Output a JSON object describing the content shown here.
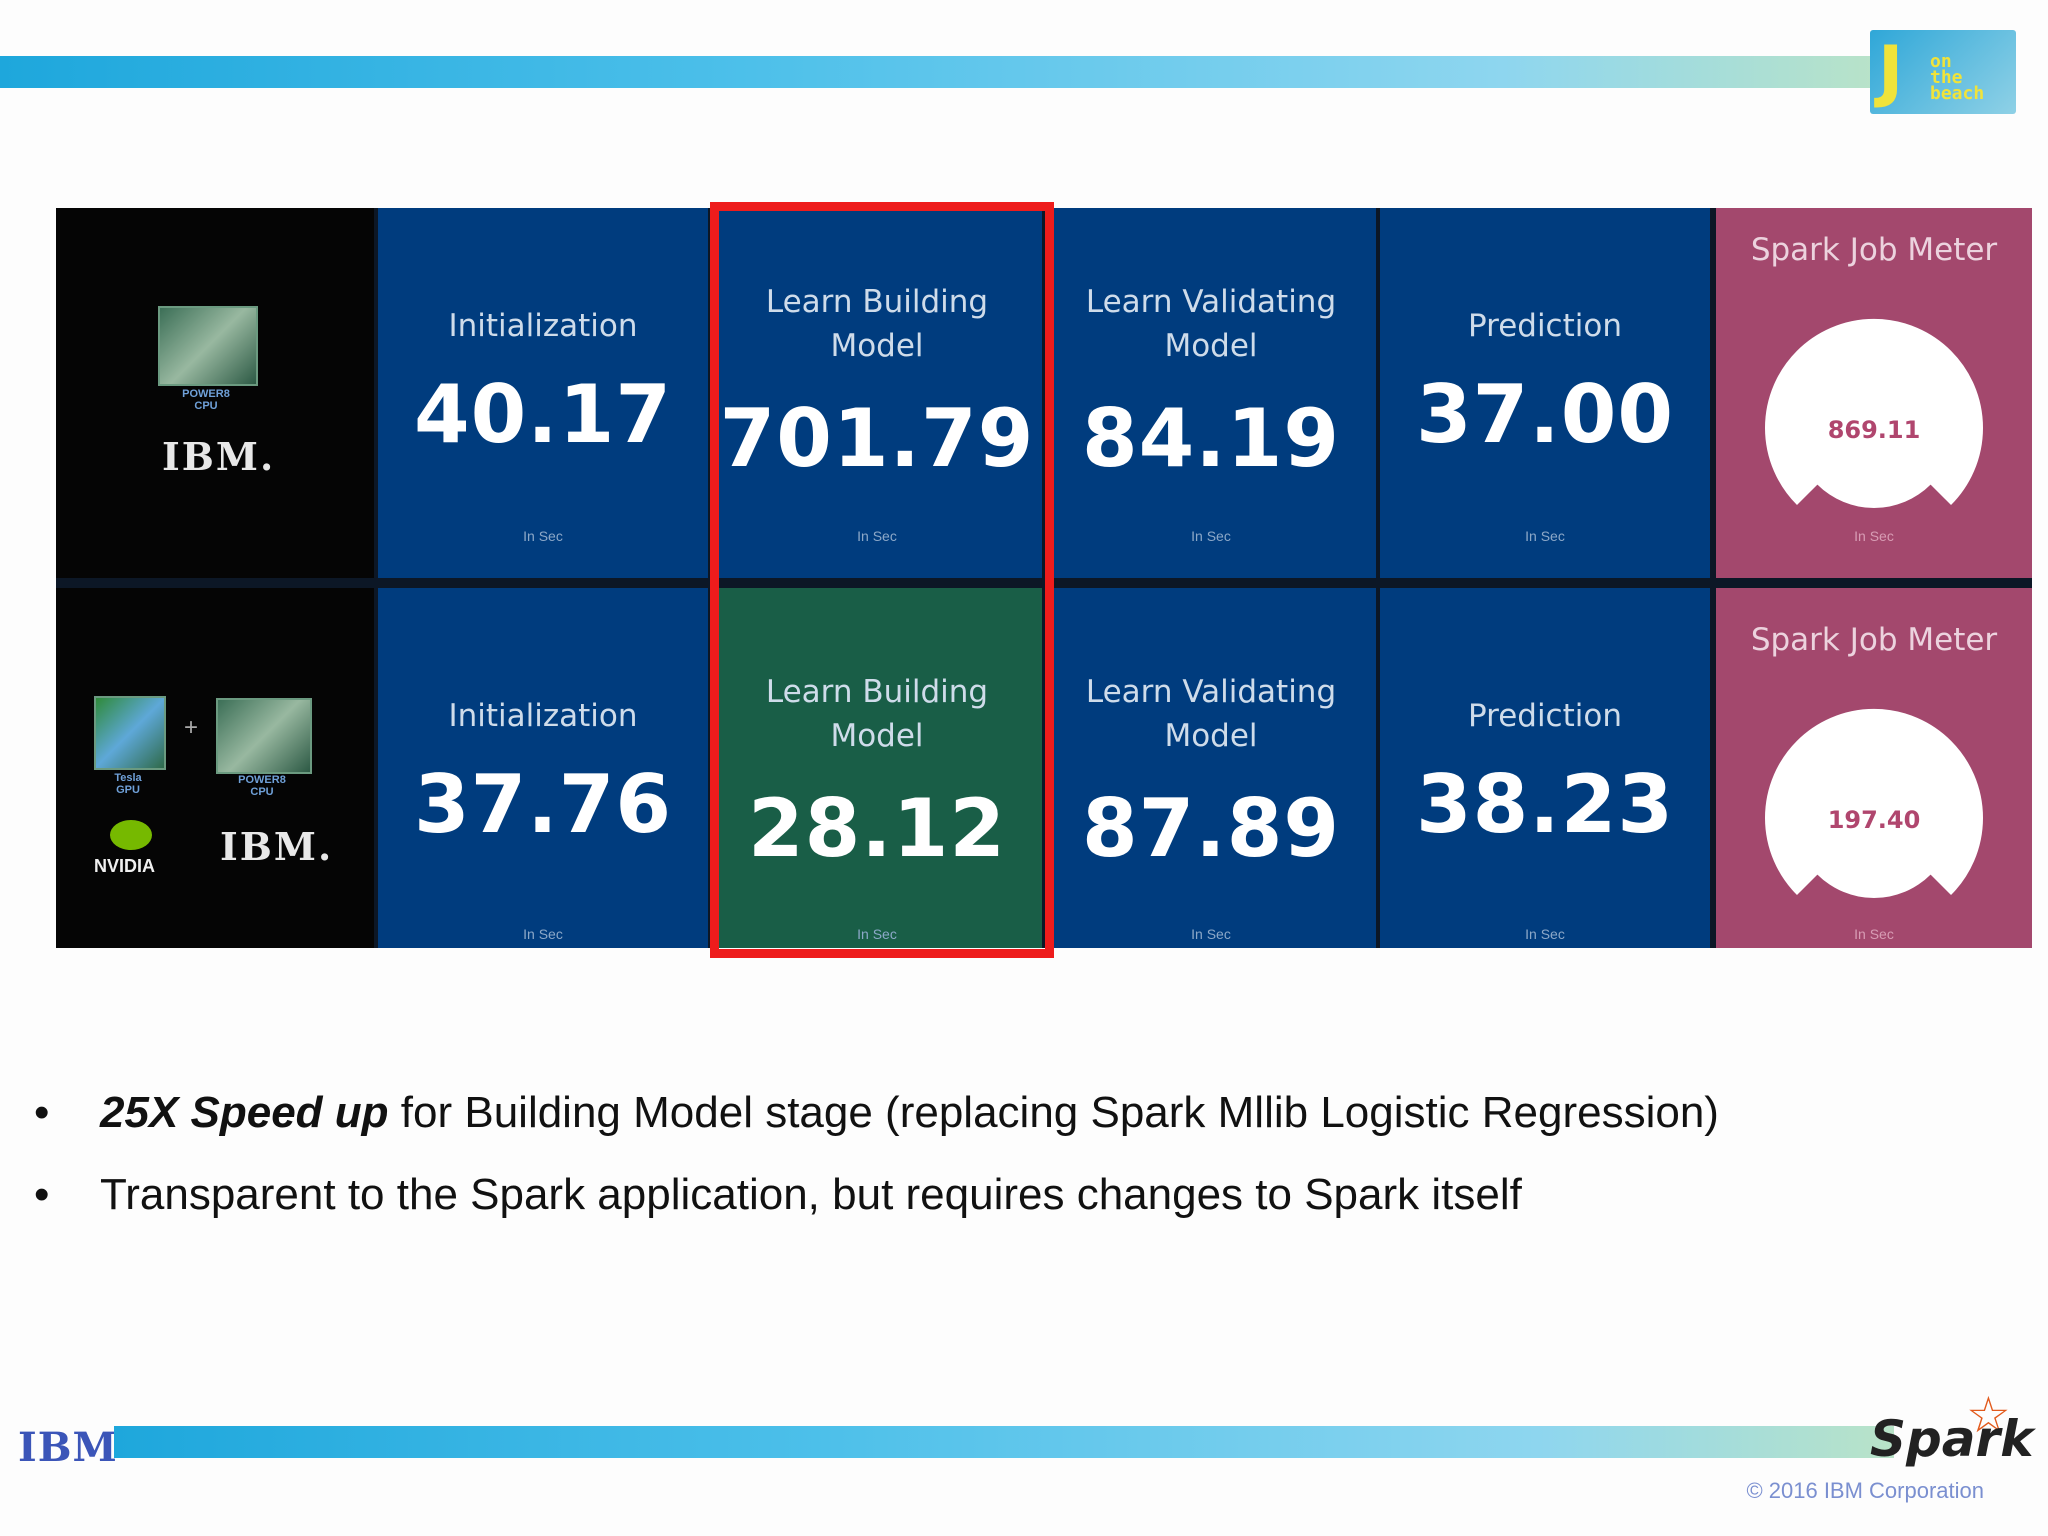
{
  "conference_logo": {
    "letter": "J",
    "text_lines": [
      "on",
      "the",
      "beach"
    ]
  },
  "dashboard": {
    "rows": [
      {
        "hardware": {
          "chip_caption": "POWER8\nCPU",
          "brand": "IBM."
        },
        "stages": [
          {
            "label": "Initialization",
            "value": "40.17",
            "unit": "In Sec"
          },
          {
            "label": "Learn Building\nModel",
            "value": "701.79",
            "unit": "In Sec"
          },
          {
            "label": "Learn Validating\nModel",
            "value": "84.19",
            "unit": "In Sec"
          },
          {
            "label": "Prediction",
            "value": "37.00",
            "unit": "In Sec"
          }
        ],
        "meter": {
          "label": "Spark Job Meter",
          "value": "869.11",
          "unit": "In Sec"
        }
      },
      {
        "hardware": {
          "gpu_caption": "Tesla\nGPU",
          "plus": "+",
          "cpu_caption": "POWER8\nCPU",
          "gpu_brand": "NVIDIA",
          "brand": "IBM."
        },
        "stages": [
          {
            "label": "Initialization",
            "value": "37.76",
            "unit": "In Sec"
          },
          {
            "label": "Learn Building\nModel",
            "value": "28.12",
            "unit": "In Sec"
          },
          {
            "label": "Learn Validating\nModel",
            "value": "87.89",
            "unit": "In Sec"
          },
          {
            "label": "Prediction",
            "value": "38.23",
            "unit": "In Sec"
          }
        ],
        "meter": {
          "label": "Spark Job Meter",
          "value": "197.40",
          "unit": "In Sec"
        }
      }
    ]
  },
  "bullets": [
    {
      "symbol": "•",
      "bold": "25X Speed up",
      "text": " for Building Model stage (replacing Spark Mllib Logistic Regression)"
    },
    {
      "symbol": "•",
      "bold": "",
      "text": "Transparent to the Spark application, but requires changes to Spark itself"
    }
  ],
  "footer": {
    "ibm_logo": "IBM",
    "spark_logo": "Spark",
    "copyright": "© 2016 IBM Corporation"
  },
  "colors": {
    "stage_blue": "#003c7e",
    "stage_green": "#195e47",
    "meter_pink": "#a3486d",
    "highlight_red": "#ee1c1c"
  }
}
